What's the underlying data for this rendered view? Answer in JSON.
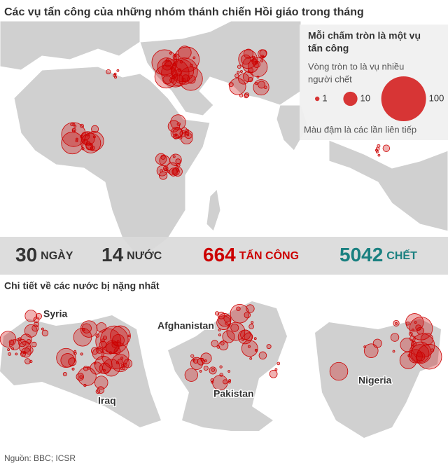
{
  "title": "Các vụ tấn công của những nhóm thánh chiến Hồi giáo trong tháng",
  "legend": {
    "heading": [
      "Mỗi chấm tròn là một vụ",
      "tấn công"
    ],
    "size_note": [
      "Vòng tròn to là vụ nhiều",
      "người chết"
    ],
    "sizes": [
      1,
      10,
      100
    ],
    "shade_note": "Màu đậm là các lần liên tiếp"
  },
  "stats": [
    {
      "number": 30,
      "label": "NGÀY"
    },
    {
      "number": 14,
      "label": "NƯỚC"
    },
    {
      "number": 664,
      "label": "TẤN CÔNG"
    },
    {
      "number": 5042,
      "label": "CHẾT"
    }
  ],
  "detail_title": "Chi tiết về các nước bị nặng nhất",
  "maps": [
    {
      "labels": [
        "Syria",
        "Iraq"
      ]
    },
    {
      "labels": [
        "Afghanistan",
        "Pakistan"
      ]
    },
    {
      "labels": [
        "Nigeria"
      ]
    }
  ],
  "source": "Nguồn: BBC; ICSR"
}
